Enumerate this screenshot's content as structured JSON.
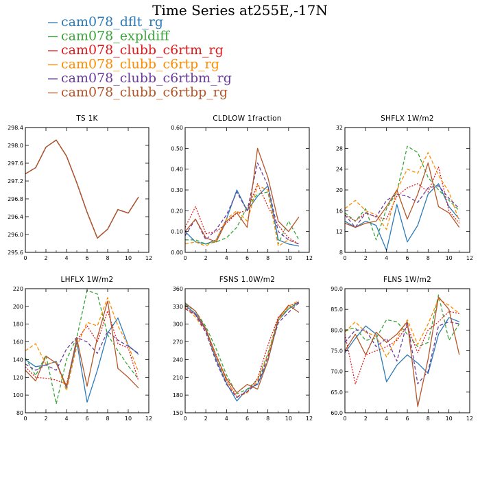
{
  "title": "Time Series at255E,-17N",
  "legend": [
    {
      "name": "cam078_dflt_rg",
      "color": "#2b7bb9",
      "dash": "solid"
    },
    {
      "name": "cam078_expldiff",
      "color": "#3aa53a",
      "dash": "dashed"
    },
    {
      "name": "cam078_clubb_c6rtm_rg",
      "color": "#e31a1c",
      "dash": "dotted"
    },
    {
      "name": "cam078_clubb_c6rtp_rg",
      "color": "#ff8c00",
      "dash": "dashed"
    },
    {
      "name": "cam078_clubb_c6rtbm_rg",
      "color": "#6a3d9a",
      "dash": "dashed"
    },
    {
      "name": "cam078_clubb_c6rtbp_rg",
      "color": "#b5562a",
      "dash": "solid"
    }
  ],
  "chart_data": [
    {
      "type": "line",
      "title": "TS   1K",
      "xlim": [
        0,
        12
      ],
      "ylim": [
        295.6,
        298.4
      ],
      "xticks": [
        0,
        2,
        4,
        6,
        8,
        10,
        12
      ],
      "yticks": [
        295.6,
        296.0,
        296.4,
        296.8,
        297.2,
        297.6,
        298.0,
        298.4
      ],
      "ytick_labels": [
        "295.6",
        "296.0",
        "296.4",
        "296.8",
        "297.2",
        "297.6",
        "298.0",
        "298.4"
      ],
      "x": [
        0,
        1,
        2,
        3,
        4,
        5,
        6,
        7,
        8,
        9,
        10,
        11
      ],
      "series": [
        {
          "values": [
            297.36,
            297.5,
            297.96,
            298.12,
            297.76,
            297.16,
            296.5,
            295.92,
            296.12,
            296.56,
            296.48,
            296.84
          ]
        },
        {
          "values": [
            297.36,
            297.5,
            297.96,
            298.12,
            297.76,
            297.16,
            296.5,
            295.92,
            296.12,
            296.56,
            296.48,
            296.84
          ]
        },
        {
          "values": [
            297.36,
            297.5,
            297.96,
            298.12,
            297.76,
            297.16,
            296.5,
            295.92,
            296.12,
            296.56,
            296.48,
            296.84
          ]
        },
        {
          "values": [
            297.36,
            297.5,
            297.96,
            298.12,
            297.76,
            297.16,
            296.5,
            295.92,
            296.12,
            296.56,
            296.48,
            296.84
          ]
        },
        {
          "values": [
            297.36,
            297.5,
            297.96,
            298.12,
            297.76,
            297.16,
            296.5,
            295.92,
            296.12,
            296.56,
            296.48,
            296.84
          ]
        },
        {
          "values": [
            297.36,
            297.5,
            297.96,
            298.12,
            297.76,
            297.16,
            296.5,
            295.92,
            296.12,
            296.56,
            296.48,
            296.84
          ]
        }
      ]
    },
    {
      "type": "line",
      "title": "CLDLOW   1fraction",
      "xlim": [
        0,
        12
      ],
      "ylim": [
        0.0,
        0.6
      ],
      "xticks": [
        0,
        2,
        4,
        6,
        8,
        10,
        12
      ],
      "yticks": [
        0.0,
        0.1,
        0.2,
        0.3,
        0.4,
        0.5,
        0.6
      ],
      "ytick_labels": [
        "0.00",
        "0.10",
        "0.20",
        "0.30",
        "0.40",
        "0.50",
        "0.60"
      ],
      "x": [
        0,
        1,
        2,
        3,
        4,
        5,
        6,
        7,
        8,
        9,
        10,
        11
      ],
      "series": [
        {
          "values": [
            0.1,
            0.05,
            0.04,
            0.06,
            0.16,
            0.3,
            0.2,
            0.27,
            0.32,
            0.06,
            0.04,
            0.03
          ]
        },
        {
          "values": [
            0.06,
            0.06,
            0.04,
            0.05,
            0.07,
            0.12,
            0.22,
            0.28,
            0.29,
            0.04,
            0.15,
            0.06
          ]
        },
        {
          "values": [
            0.12,
            0.22,
            0.09,
            0.1,
            0.14,
            0.19,
            0.2,
            0.33,
            0.22,
            0.13,
            0.07,
            0.04
          ]
        },
        {
          "values": [
            0.04,
            0.05,
            0.03,
            0.06,
            0.16,
            0.2,
            0.15,
            0.32,
            0.3,
            0.03,
            0.06,
            0.04
          ]
        },
        {
          "values": [
            0.08,
            0.16,
            0.06,
            0.11,
            0.18,
            0.29,
            0.2,
            0.43,
            0.32,
            0.1,
            0.06,
            0.04
          ]
        },
        {
          "values": [
            0.1,
            0.16,
            0.07,
            0.05,
            0.15,
            0.19,
            0.12,
            0.5,
            0.36,
            0.15,
            0.1,
            0.17
          ]
        }
      ]
    },
    {
      "type": "line",
      "title": "SHFLX   1W/m2",
      "xlim": [
        0,
        12
      ],
      "ylim": [
        8,
        32
      ],
      "xticks": [
        0,
        2,
        4,
        6,
        8,
        10,
        12
      ],
      "yticks": [
        8,
        12,
        16,
        20,
        24,
        28,
        32
      ],
      "ytick_labels": [
        "8",
        "12",
        "16",
        "20",
        "24",
        "28",
        "32"
      ],
      "x": [
        0,
        1,
        2,
        3,
        4,
        5,
        6,
        7,
        8,
        9,
        10,
        11
      ],
      "series": [
        {
          "values": [
            14.0,
            12.8,
            14.0,
            13.2,
            8.4,
            17.2,
            10.0,
            13.2,
            19.2,
            21.2,
            16.8,
            14.4
          ]
        },
        {
          "values": [
            15.6,
            14.0,
            16.4,
            10.4,
            16.4,
            19.6,
            28.4,
            27.2,
            22.4,
            20.0,
            18.0,
            16.0
          ]
        },
        {
          "values": [
            15.2,
            14.0,
            15.6,
            14.8,
            14.4,
            18.8,
            20.4,
            21.2,
            19.6,
            24.4,
            16.0,
            13.6
          ]
        },
        {
          "values": [
            16.4,
            18.0,
            16.0,
            15.2,
            12.4,
            20.0,
            24.0,
            23.2,
            27.2,
            22.8,
            19.6,
            14.0
          ]
        },
        {
          "values": [
            15.2,
            12.8,
            15.6,
            14.8,
            18.0,
            19.2,
            18.8,
            17.6,
            20.4,
            20.8,
            18.4,
            16.4
          ]
        },
        {
          "values": [
            13.6,
            12.8,
            13.6,
            14.0,
            16.8,
            20.0,
            14.4,
            19.2,
            25.2,
            16.8,
            15.6,
            12.8
          ]
        }
      ]
    },
    {
      "type": "line",
      "title": "LHFLX   1W/m2",
      "xlim": [
        0,
        12
      ],
      "ylim": [
        80,
        220
      ],
      "xticks": [
        0,
        2,
        4,
        6,
        8,
        10,
        12
      ],
      "yticks": [
        80,
        100,
        120,
        140,
        160,
        180,
        200,
        220
      ],
      "ytick_labels": [
        "80",
        "100",
        "120",
        "140",
        "160",
        "180",
        "200",
        "220"
      ],
      "x": [
        0,
        1,
        2,
        3,
        4,
        5,
        6,
        7,
        8,
        9,
        10,
        11
      ],
      "series": [
        {
          "values": [
            140,
            132,
            134,
            138,
            108,
            160,
            92,
            128,
            170,
            187,
            156,
            146
          ]
        },
        {
          "values": [
            142,
            122,
            145,
            90,
            140,
            165,
            218,
            214,
            168,
            150,
            133,
            118
          ]
        },
        {
          "values": [
            132,
            120,
            119,
            117,
            112,
            162,
            178,
            160,
            195,
            158,
            153,
            116
          ]
        },
        {
          "values": [
            150,
            158,
            135,
            137,
            105,
            155,
            182,
            178,
            210,
            178,
            156,
            126
          ]
        },
        {
          "values": [
            135,
            128,
            134,
            128,
            152,
            165,
            160,
            147,
            172,
            162,
            155,
            147
          ]
        },
        {
          "values": [
            128,
            116,
            144,
            136,
            110,
            164,
            110,
            165,
            206,
            130,
            120,
            108
          ]
        }
      ]
    },
    {
      "type": "line",
      "title": "FSNS   1.0W/m2",
      "xlim": [
        0,
        12
      ],
      "ylim": [
        150,
        360
      ],
      "xticks": [
        0,
        2,
        4,
        6,
        8,
        10,
        12
      ],
      "yticks": [
        150,
        180,
        210,
        240,
        270,
        300,
        330,
        360
      ],
      "ytick_labels": [
        "150",
        "180",
        "210",
        "240",
        "270",
        "300",
        "330",
        "360"
      ],
      "x": [
        0,
        1,
        2,
        3,
        4,
        5,
        6,
        7,
        8,
        9,
        10,
        11
      ],
      "series": [
        {
          "values": [
            332,
            318,
            290,
            240,
            200,
            170,
            190,
            198,
            238,
            306,
            326,
            338
          ]
        },
        {
          "values": [
            334,
            322,
            296,
            258,
            214,
            182,
            190,
            206,
            250,
            310,
            326,
            336
          ]
        },
        {
          "values": [
            330,
            316,
            290,
            248,
            205,
            178,
            185,
            208,
            264,
            312,
            330,
            338
          ]
        },
        {
          "values": [
            328,
            312,
            286,
            244,
            204,
            176,
            184,
            204,
            248,
            306,
            330,
            340
          ]
        },
        {
          "values": [
            326,
            316,
            286,
            236,
            198,
            176,
            186,
            200,
            244,
            302,
            320,
            336
          ]
        },
        {
          "values": [
            336,
            322,
            292,
            246,
            208,
            184,
            198,
            190,
            238,
            310,
            332,
            320
          ]
        }
      ]
    },
    {
      "type": "line",
      "title": "FLNS   1W/m2",
      "xlim": [
        0,
        12
      ],
      "ylim": [
        60,
        90
      ],
      "xticks": [
        0,
        2,
        4,
        6,
        8,
        10,
        12
      ],
      "yticks": [
        60,
        65,
        70,
        75,
        80,
        85,
        90
      ],
      "ytick_labels": [
        "60.0",
        "65.0",
        "70.0",
        "75.0",
        "80.0",
        "85.0",
        "90.0"
      ],
      "x": [
        0,
        1,
        2,
        3,
        4,
        5,
        6,
        7,
        8,
        9,
        10,
        11
      ],
      "series": [
        {
          "values": [
            74.5,
            78.0,
            81.0,
            79.0,
            67.5,
            71.5,
            74.0,
            72.0,
            69.5,
            79.0,
            83.0,
            82.0
          ]
        },
        {
          "values": [
            80.0,
            80.5,
            77.5,
            78.0,
            82.5,
            82.0,
            79.0,
            76.0,
            77.0,
            88.5,
            77.5,
            81.5
          ]
        },
        {
          "values": [
            79.0,
            67.0,
            74.0,
            75.0,
            76.0,
            77.5,
            81.0,
            74.5,
            80.0,
            82.0,
            84.5,
            84.0
          ]
        },
        {
          "values": [
            79.5,
            82.0,
            79.5,
            78.5,
            73.5,
            78.0,
            82.5,
            76.5,
            81.5,
            87.5,
            86.0,
            84.0
          ]
        },
        {
          "values": [
            77.0,
            80.0,
            80.0,
            76.0,
            78.0,
            72.5,
            82.0,
            67.0,
            70.0,
            81.0,
            82.0,
            81.5
          ]
        },
        {
          "values": [
            75.0,
            79.0,
            74.0,
            79.5,
            77.0,
            79.0,
            82.0,
            61.5,
            73.0,
            88.0,
            85.0,
            74.0
          ]
        }
      ]
    }
  ]
}
